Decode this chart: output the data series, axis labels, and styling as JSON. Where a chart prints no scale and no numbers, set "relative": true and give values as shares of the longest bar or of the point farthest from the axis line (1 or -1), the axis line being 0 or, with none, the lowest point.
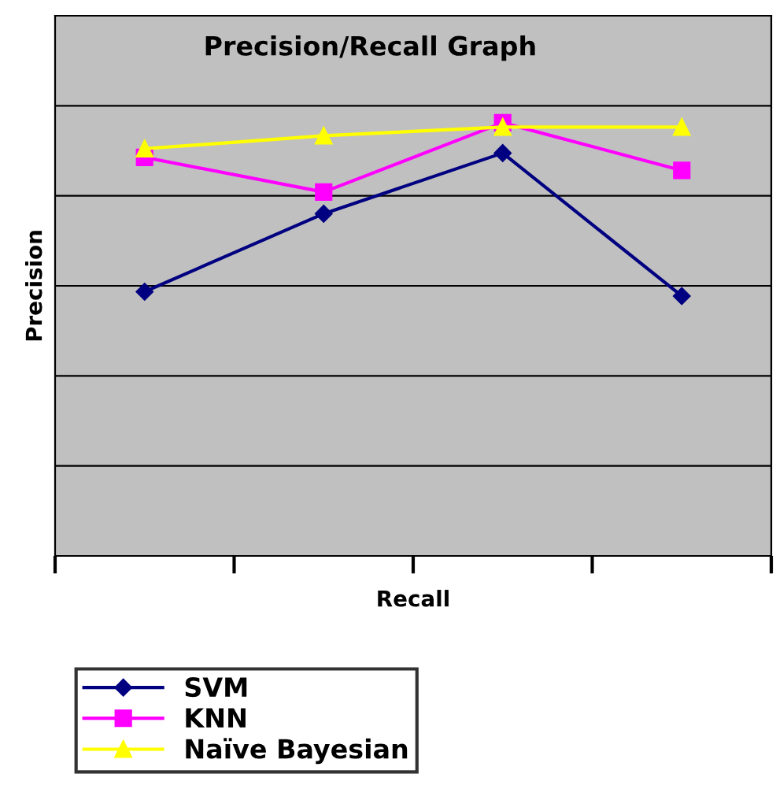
{
  "chart_data": {
    "type": "line",
    "title": "Precision/Recall Graph",
    "xlabel": "Recall",
    "ylabel": "Precision",
    "relative": true,
    "categories": [
      null,
      null,
      null,
      null
    ],
    "series": [
      {
        "name": "SVM",
        "color": "#000080",
        "marker": "diamond",
        "values": [
          0.61,
          0.79,
          0.93,
          0.6
        ]
      },
      {
        "name": "KNN",
        "color": "#ff00ff",
        "marker": "square",
        "values": [
          0.92,
          0.84,
          1.0,
          0.89
        ]
      },
      {
        "name": "Naïve Bayesian",
        "color": "#ffff00",
        "marker": "triangle",
        "values": [
          0.94,
          0.97,
          0.99,
          0.99
        ]
      }
    ],
    "grid": "y",
    "legend": "bottom"
  }
}
